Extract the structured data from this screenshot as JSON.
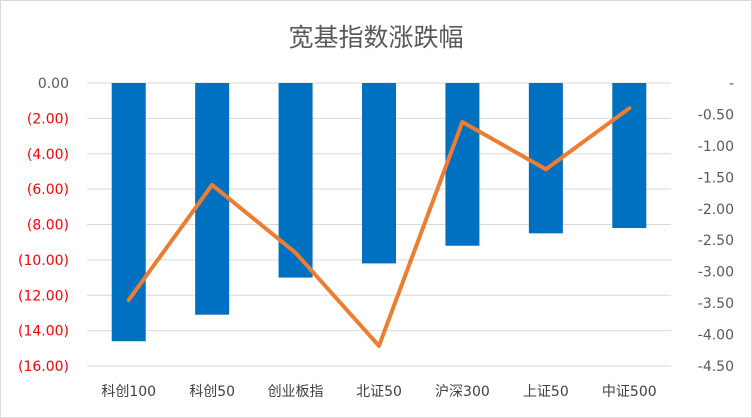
{
  "chart_data": {
    "type": "bar",
    "title": "宽基指数涨跌幅",
    "categories": [
      "科创100",
      "科创50",
      "创业板指",
      "北证50",
      "沪深300",
      "上证50",
      "中证500"
    ],
    "series": [
      {
        "type": "bar",
        "axis": "left",
        "color": "#0070C0",
        "values": [
          -14.6,
          -13.1,
          -11.0,
          -10.2,
          -9.2,
          -8.5,
          -8.2
        ]
      },
      {
        "type": "line",
        "axis": "right",
        "color": "#ED7D31",
        "values": [
          -3.45,
          -1.62,
          -2.7,
          -4.18,
          -0.62,
          -1.37,
          -0.4
        ]
      }
    ],
    "y_left": {
      "range": [
        -16,
        0
      ],
      "ticks": [
        0,
        -2,
        -4,
        -6,
        -8,
        -10,
        -12,
        -14,
        -16
      ],
      "tick_labels": [
        "0.00",
        "(2.00)",
        "(4.00)",
        "(6.00)",
        "(8.00)",
        "(10.00)",
        "(12.00)",
        "(14.00)",
        "(16.00)"
      ],
      "colors": {
        "zero": "#595959",
        "negative": "#FF0000"
      }
    },
    "y_right": {
      "range": [
        -4.5,
        0
      ],
      "ticks": [
        0,
        -0.5,
        -1,
        -1.5,
        -2,
        -2.5,
        -3,
        -3.5,
        -4,
        -4.5
      ],
      "tick_labels": [
        "-",
        "-0.50",
        "-1.00",
        "-1.50",
        "-2.00",
        "-2.50",
        "-3.00",
        "-3.50",
        "-4.00",
        "-4.50"
      ]
    },
    "grid": true,
    "legend": "none"
  }
}
